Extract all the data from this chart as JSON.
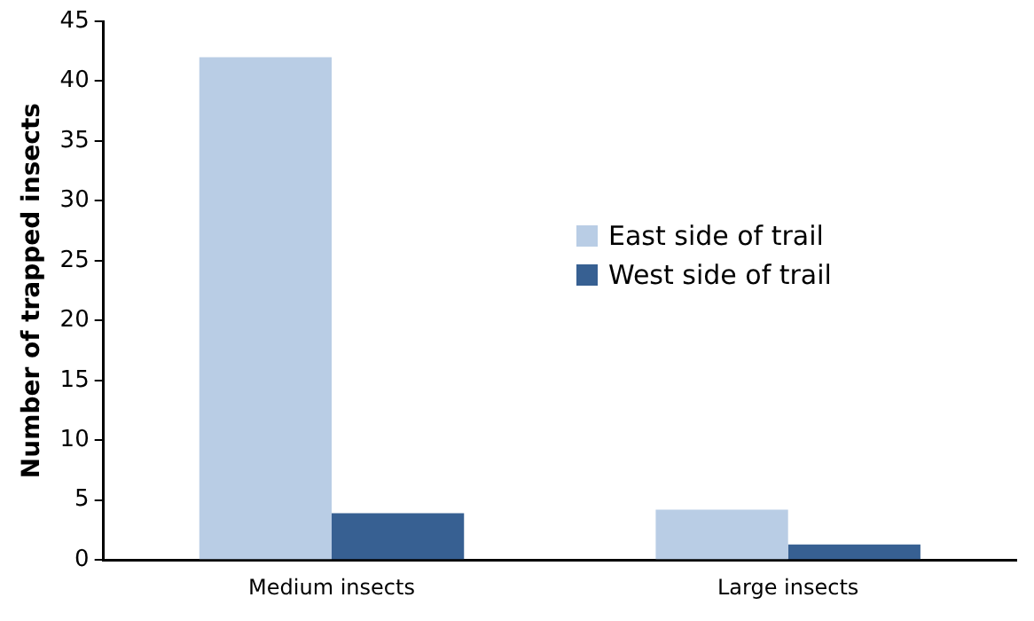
{
  "chart_data": {
    "type": "bar",
    "ylabel": "Number of trapped insects",
    "categories": [
      "Medium insects",
      "Large insects"
    ],
    "series": [
      {
        "name": "East side of trail",
        "color": "#b9cde5",
        "values": [
          42,
          4.2
        ]
      },
      {
        "name": "West side of trail",
        "color": "#376092",
        "values": [
          3.9,
          1.3
        ]
      }
    ],
    "ylim": [
      0,
      45
    ],
    "yticks": [
      0,
      5,
      10,
      15,
      20,
      25,
      30,
      35,
      40,
      45
    ],
    "grid": false,
    "legend": "right"
  }
}
